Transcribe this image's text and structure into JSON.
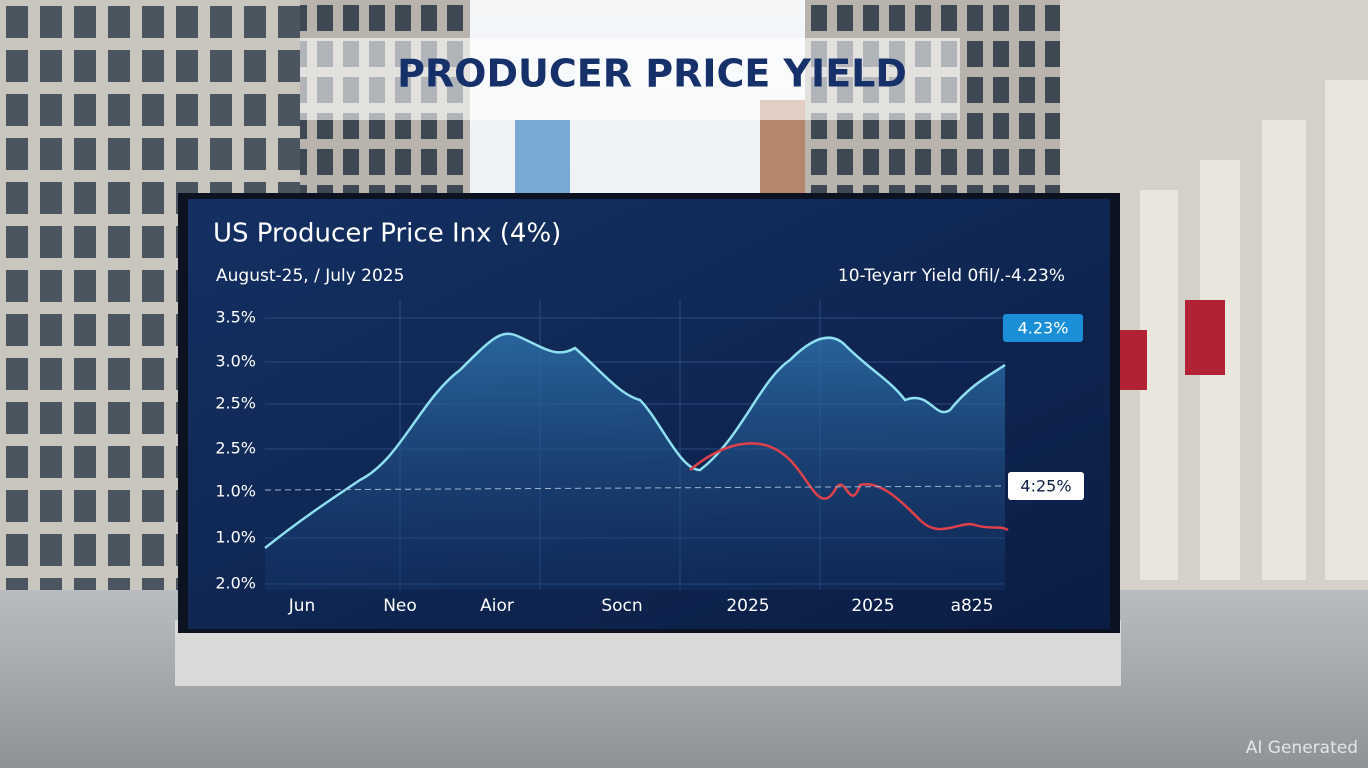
{
  "banner": {
    "title": "PRODUCER PRICE YIELD"
  },
  "screen": {
    "title": "US Producer Price Inx (4%)",
    "subtitle": "August-25, / July 2025",
    "yield_note": "10-Teyarr Yield 0fil/.-4.23%",
    "y_labels": [
      "3.5%",
      "3.0%",
      "2.5%",
      "2.5%",
      "1.0%",
      "1.0%",
      "2.0%"
    ],
    "x_labels": [
      "Jun",
      "Neo",
      "Aior",
      "Socn",
      "2025",
      "2025",
      "a825"
    ],
    "callouts": [
      "4.23%",
      "4:25%"
    ]
  },
  "watermark": "AI Generated"
}
